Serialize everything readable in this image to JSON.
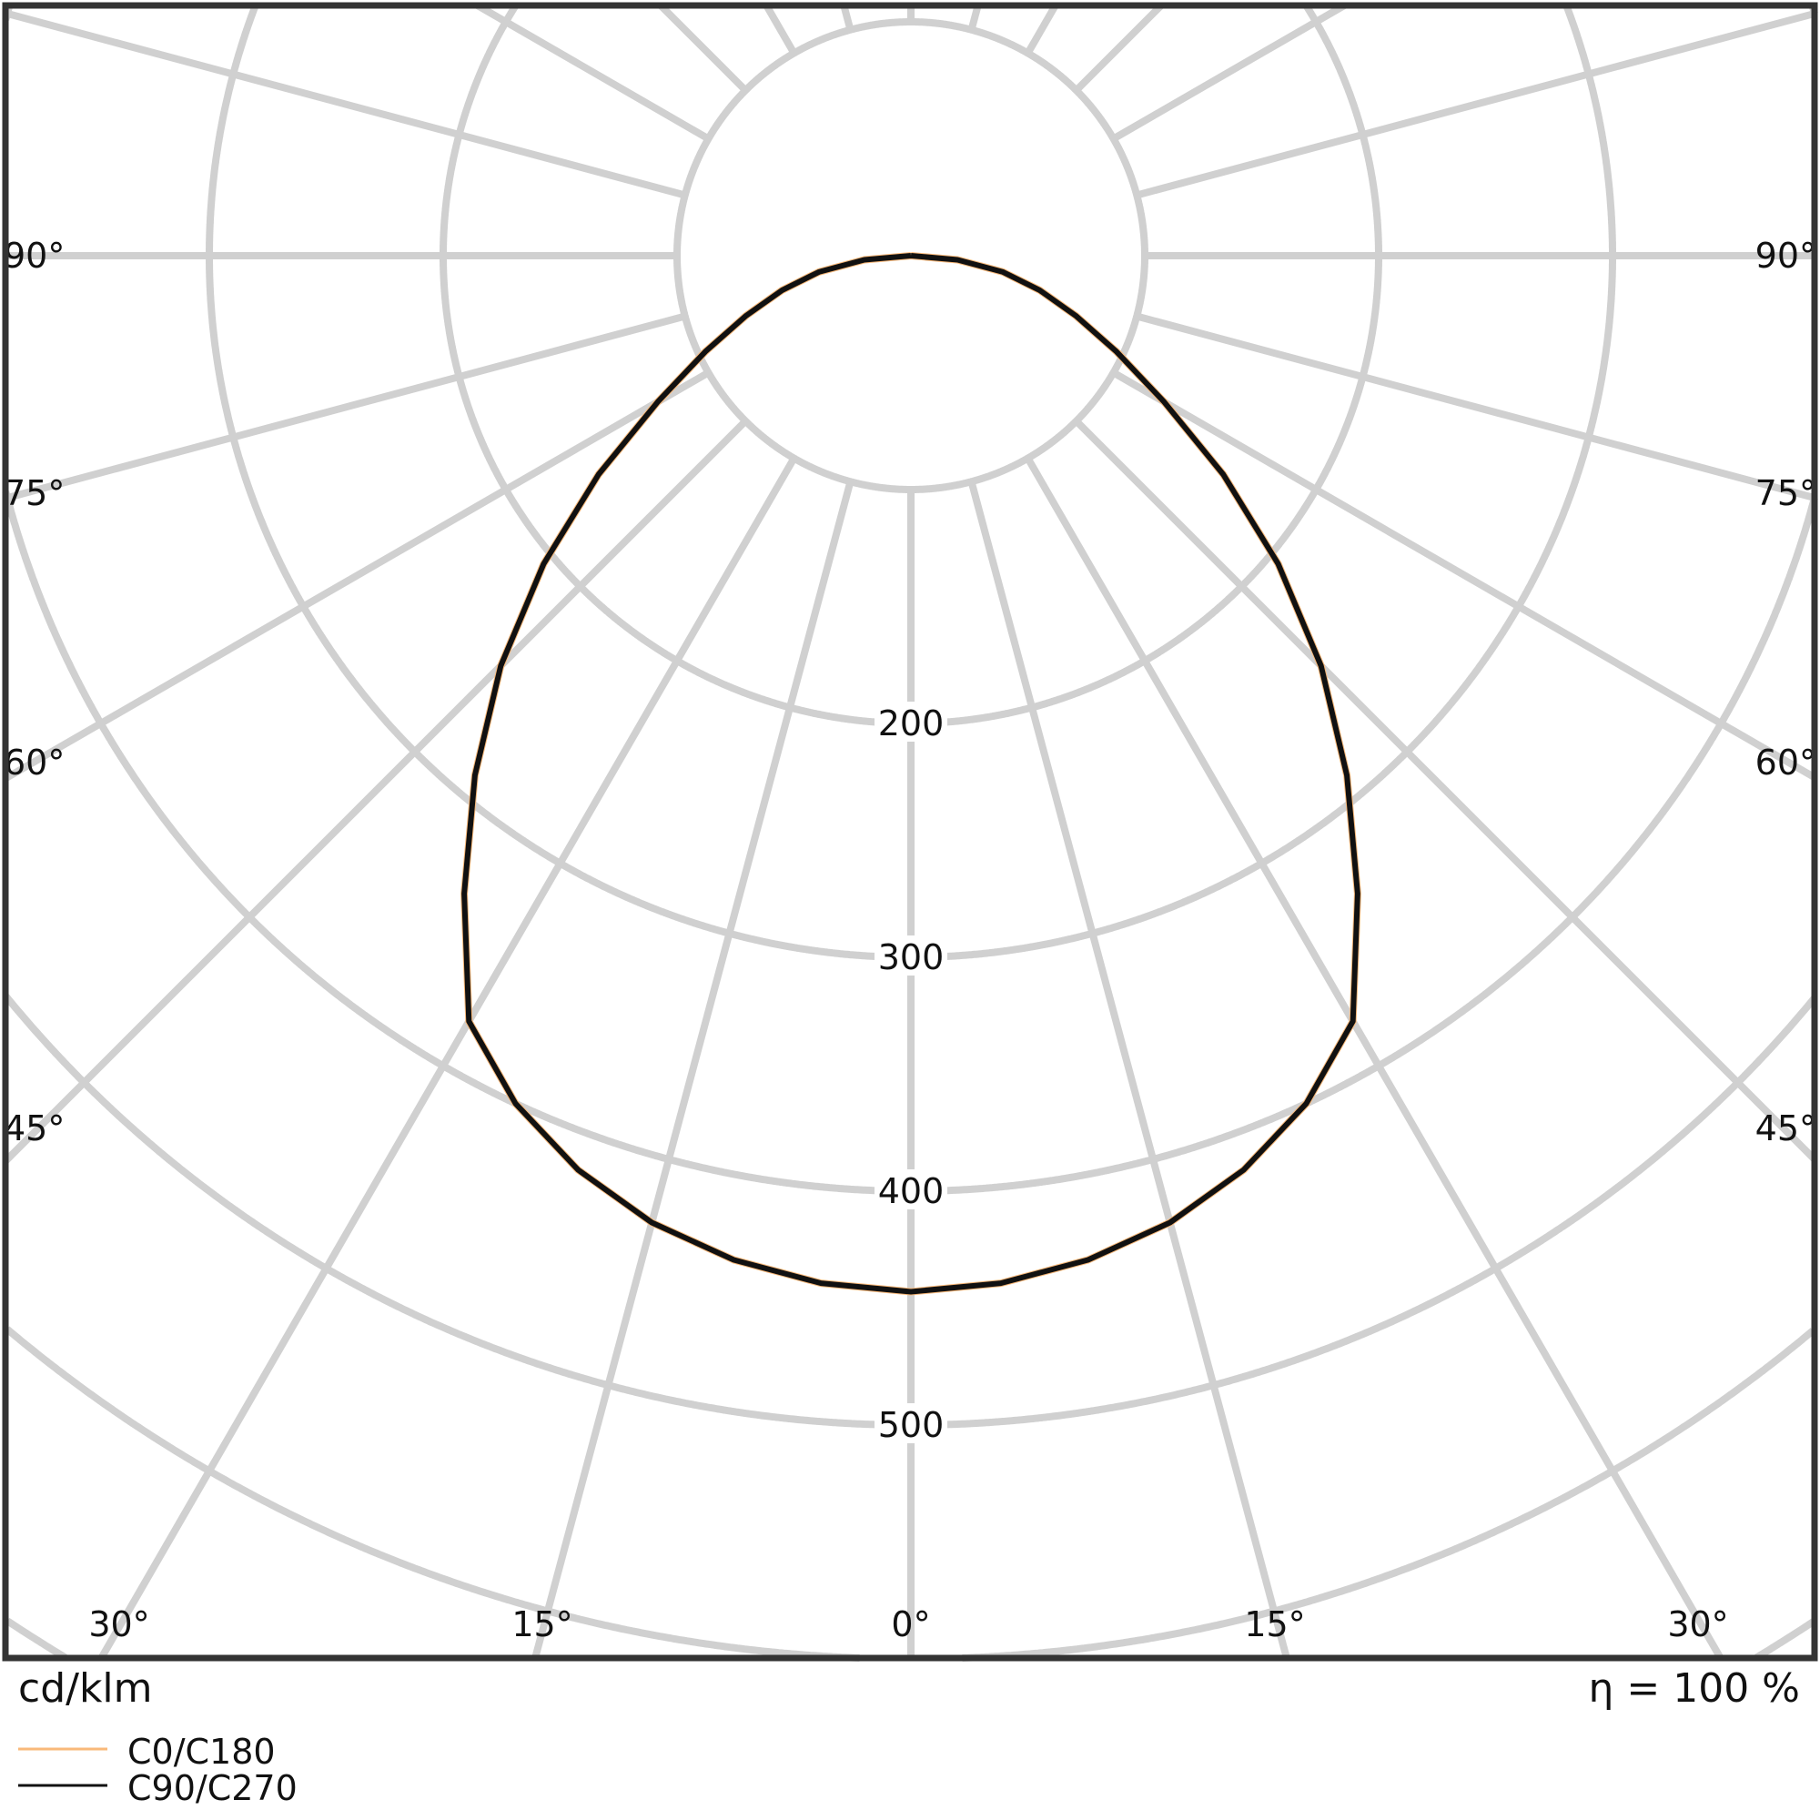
{
  "chart_data": {
    "type": "polar-line",
    "unit_label": "cd/klm",
    "efficiency_label": "η = 100 %",
    "radial_ticks": [
      200,
      300,
      400,
      500
    ],
    "radial_grid_step": 100,
    "angle_labels_bottom": [
      "30°",
      "15°",
      "0°",
      "15°",
      "30°"
    ],
    "angle_labels_side": [
      "90°",
      "75°",
      "60°",
      "45°"
    ],
    "grid": true,
    "grid_color": "#d0d0d0",
    "legend_position": "bottom-left",
    "angles_deg": [
      0,
      5,
      10,
      15,
      20,
      25,
      30,
      35,
      40,
      45,
      50,
      55,
      60,
      65,
      70,
      75,
      80,
      85,
      90
    ],
    "series": [
      {
        "name": "C0/C180",
        "color": "#f9b97a",
        "values": [
          443,
          441,
          436,
          428,
          416,
          400,
          378,
          333,
          290,
          248,
          205,
          163,
          125,
          97,
          75,
          57,
          40,
          20,
          0
        ]
      },
      {
        "name": "C90/C270",
        "color": "#111111",
        "values": [
          443,
          441,
          436,
          428,
          416,
          400,
          378,
          333,
          290,
          248,
          205,
          163,
          125,
          97,
          75,
          57,
          40,
          20,
          0
        ]
      }
    ]
  }
}
